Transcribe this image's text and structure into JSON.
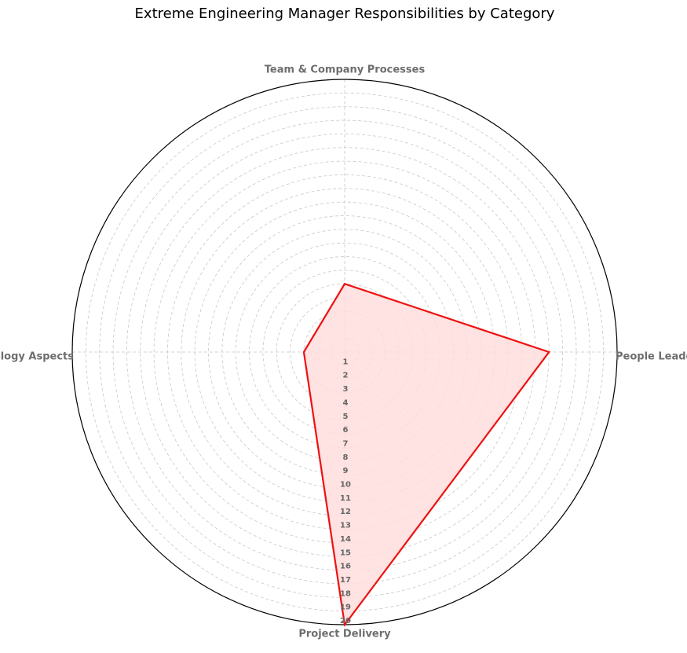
{
  "chart_data": {
    "type": "radar",
    "title": "Extreme Engineering Manager Responsibilities by Category",
    "categories": [
      "People Leadership",
      "Team & Company Processes",
      "Technology Aspects",
      "Project Delivery"
    ],
    "values": [
      15,
      5,
      3,
      20
    ],
    "color": "#ee1111",
    "fill_color": "#ffdddd",
    "ylim": [
      0,
      20
    ],
    "yticks": [
      1,
      2,
      3,
      4,
      5,
      6,
      7,
      8,
      9,
      10,
      11,
      12,
      13,
      14,
      15,
      16,
      17,
      18,
      19,
      20
    ],
    "grid": true
  }
}
